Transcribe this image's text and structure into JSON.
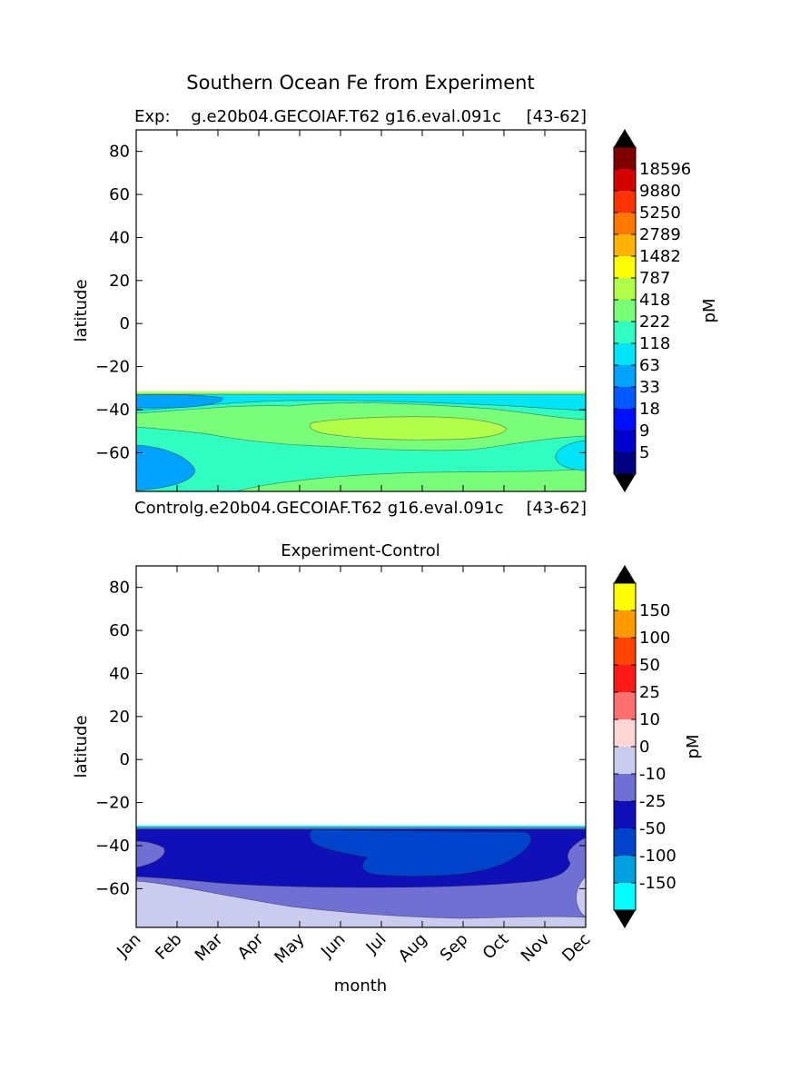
{
  "figure": {
    "suptitle": "Southern Ocean Fe from Experiment"
  },
  "chart_data": [
    {
      "type": "heatmap",
      "panel": "top",
      "title_left": "Exp:    g.e20b04.GECOIAF.T62 g16.eval.091c",
      "title_right": "[43-62]",
      "ylabel": "latitude",
      "xlabel": "",
      "ylim": [
        -78,
        90
      ],
      "y_ticks": [
        80,
        60,
        40,
        20,
        0,
        -20,
        -40,
        -60
      ],
      "y_tick_labels": [
        "80",
        "60",
        "40",
        "20",
        "0",
        "−20",
        "−40",
        "−60"
      ],
      "x_ticks": [
        "Jan",
        "Feb",
        "Mar",
        "Apr",
        "May",
        "Jun",
        "Jul",
        "Aug",
        "Sep",
        "Oct",
        "Nov",
        "Dec"
      ],
      "show_x_tick_labels": false,
      "data_extent_lat": [
        -78,
        -32
      ],
      "colorbar": {
        "label": "pM",
        "levels": [
          "18596",
          "9880",
          "5250",
          "2789",
          "1482",
          "787",
          "418",
          "222",
          "118",
          "63",
          "33",
          "18",
          "9",
          "5"
        ],
        "colors": [
          "#000000",
          "#800000",
          "#d40000",
          "#ff3300",
          "#ff7700",
          "#ffb300",
          "#ffff00",
          "#b2ff4c",
          "#7aff7a",
          "#30ffbf",
          "#00e4f8",
          "#00a4ff",
          "#0058ff",
          "#0010ff",
          "#0000cc",
          "#000080",
          "#000000"
        ],
        "extend": "both"
      },
      "fields": [
        {
          "name": "base",
          "color": "#30ffbf"
        },
        {
          "name": "sw-blob",
          "color": "#00a4ff"
        },
        {
          "name": "polar-band",
          "color": "#7aff7a"
        },
        {
          "name": "mid-band",
          "color": "#7aff7a"
        },
        {
          "name": "winter-max",
          "color": "#b2ff4c"
        },
        {
          "name": "north-band",
          "color": "#00e4f8"
        },
        {
          "name": "north-edge",
          "color": "#b2ff4c"
        },
        {
          "name": "west-blob",
          "color": "#00a4ff"
        },
        {
          "name": "east-blob",
          "color": "#00e4f8"
        }
      ]
    },
    {
      "type": "heatmap",
      "panel": "bottom",
      "title_left": "Controlg.e20b04.GECOIAF.T62 g16.eval.091c",
      "title_right": "[43-62]",
      "title": "Experiment-Control",
      "ylabel": "latitude",
      "xlabel": "month",
      "ylim": [
        -78,
        90
      ],
      "y_ticks": [
        80,
        60,
        40,
        20,
        0,
        -20,
        -40,
        -60
      ],
      "y_tick_labels": [
        "80",
        "60",
        "40",
        "20",
        "0",
        "−20",
        "−40",
        "−60"
      ],
      "x_ticks": [
        "Jan",
        "Feb",
        "Mar",
        "Apr",
        "May",
        "Jun",
        "Jul",
        "Aug",
        "Sep",
        "Oct",
        "Nov",
        "Dec"
      ],
      "show_x_tick_labels": true,
      "data_extent_lat": [
        -78,
        -31
      ],
      "colorbar": {
        "label": "pM",
        "levels": [
          "150",
          "100",
          "50",
          "25",
          "10",
          "0",
          "-10",
          "-25",
          "-50",
          "-100",
          "-150"
        ],
        "colors": [
          "#000000",
          "#ffff00",
          "#ff9900",
          "#ff4400",
          "#ff1a1a",
          "#ff7070",
          "#ffd6d6",
          "#cbcbee",
          "#7070d4",
          "#1010b8",
          "#0044cc",
          "#00a0e0",
          "#00ffff",
          "#000000"
        ],
        "extend": "both"
      },
      "fields": [
        {
          "name": "base",
          "color": "#cbcbee"
        },
        {
          "name": "band-mid",
          "color": "#7070d4"
        },
        {
          "name": "band-dark",
          "color": "#1010b8"
        },
        {
          "name": "winter-min",
          "color": "#0044cc"
        },
        {
          "name": "north-edge",
          "color": "#00ffff"
        }
      ]
    }
  ]
}
